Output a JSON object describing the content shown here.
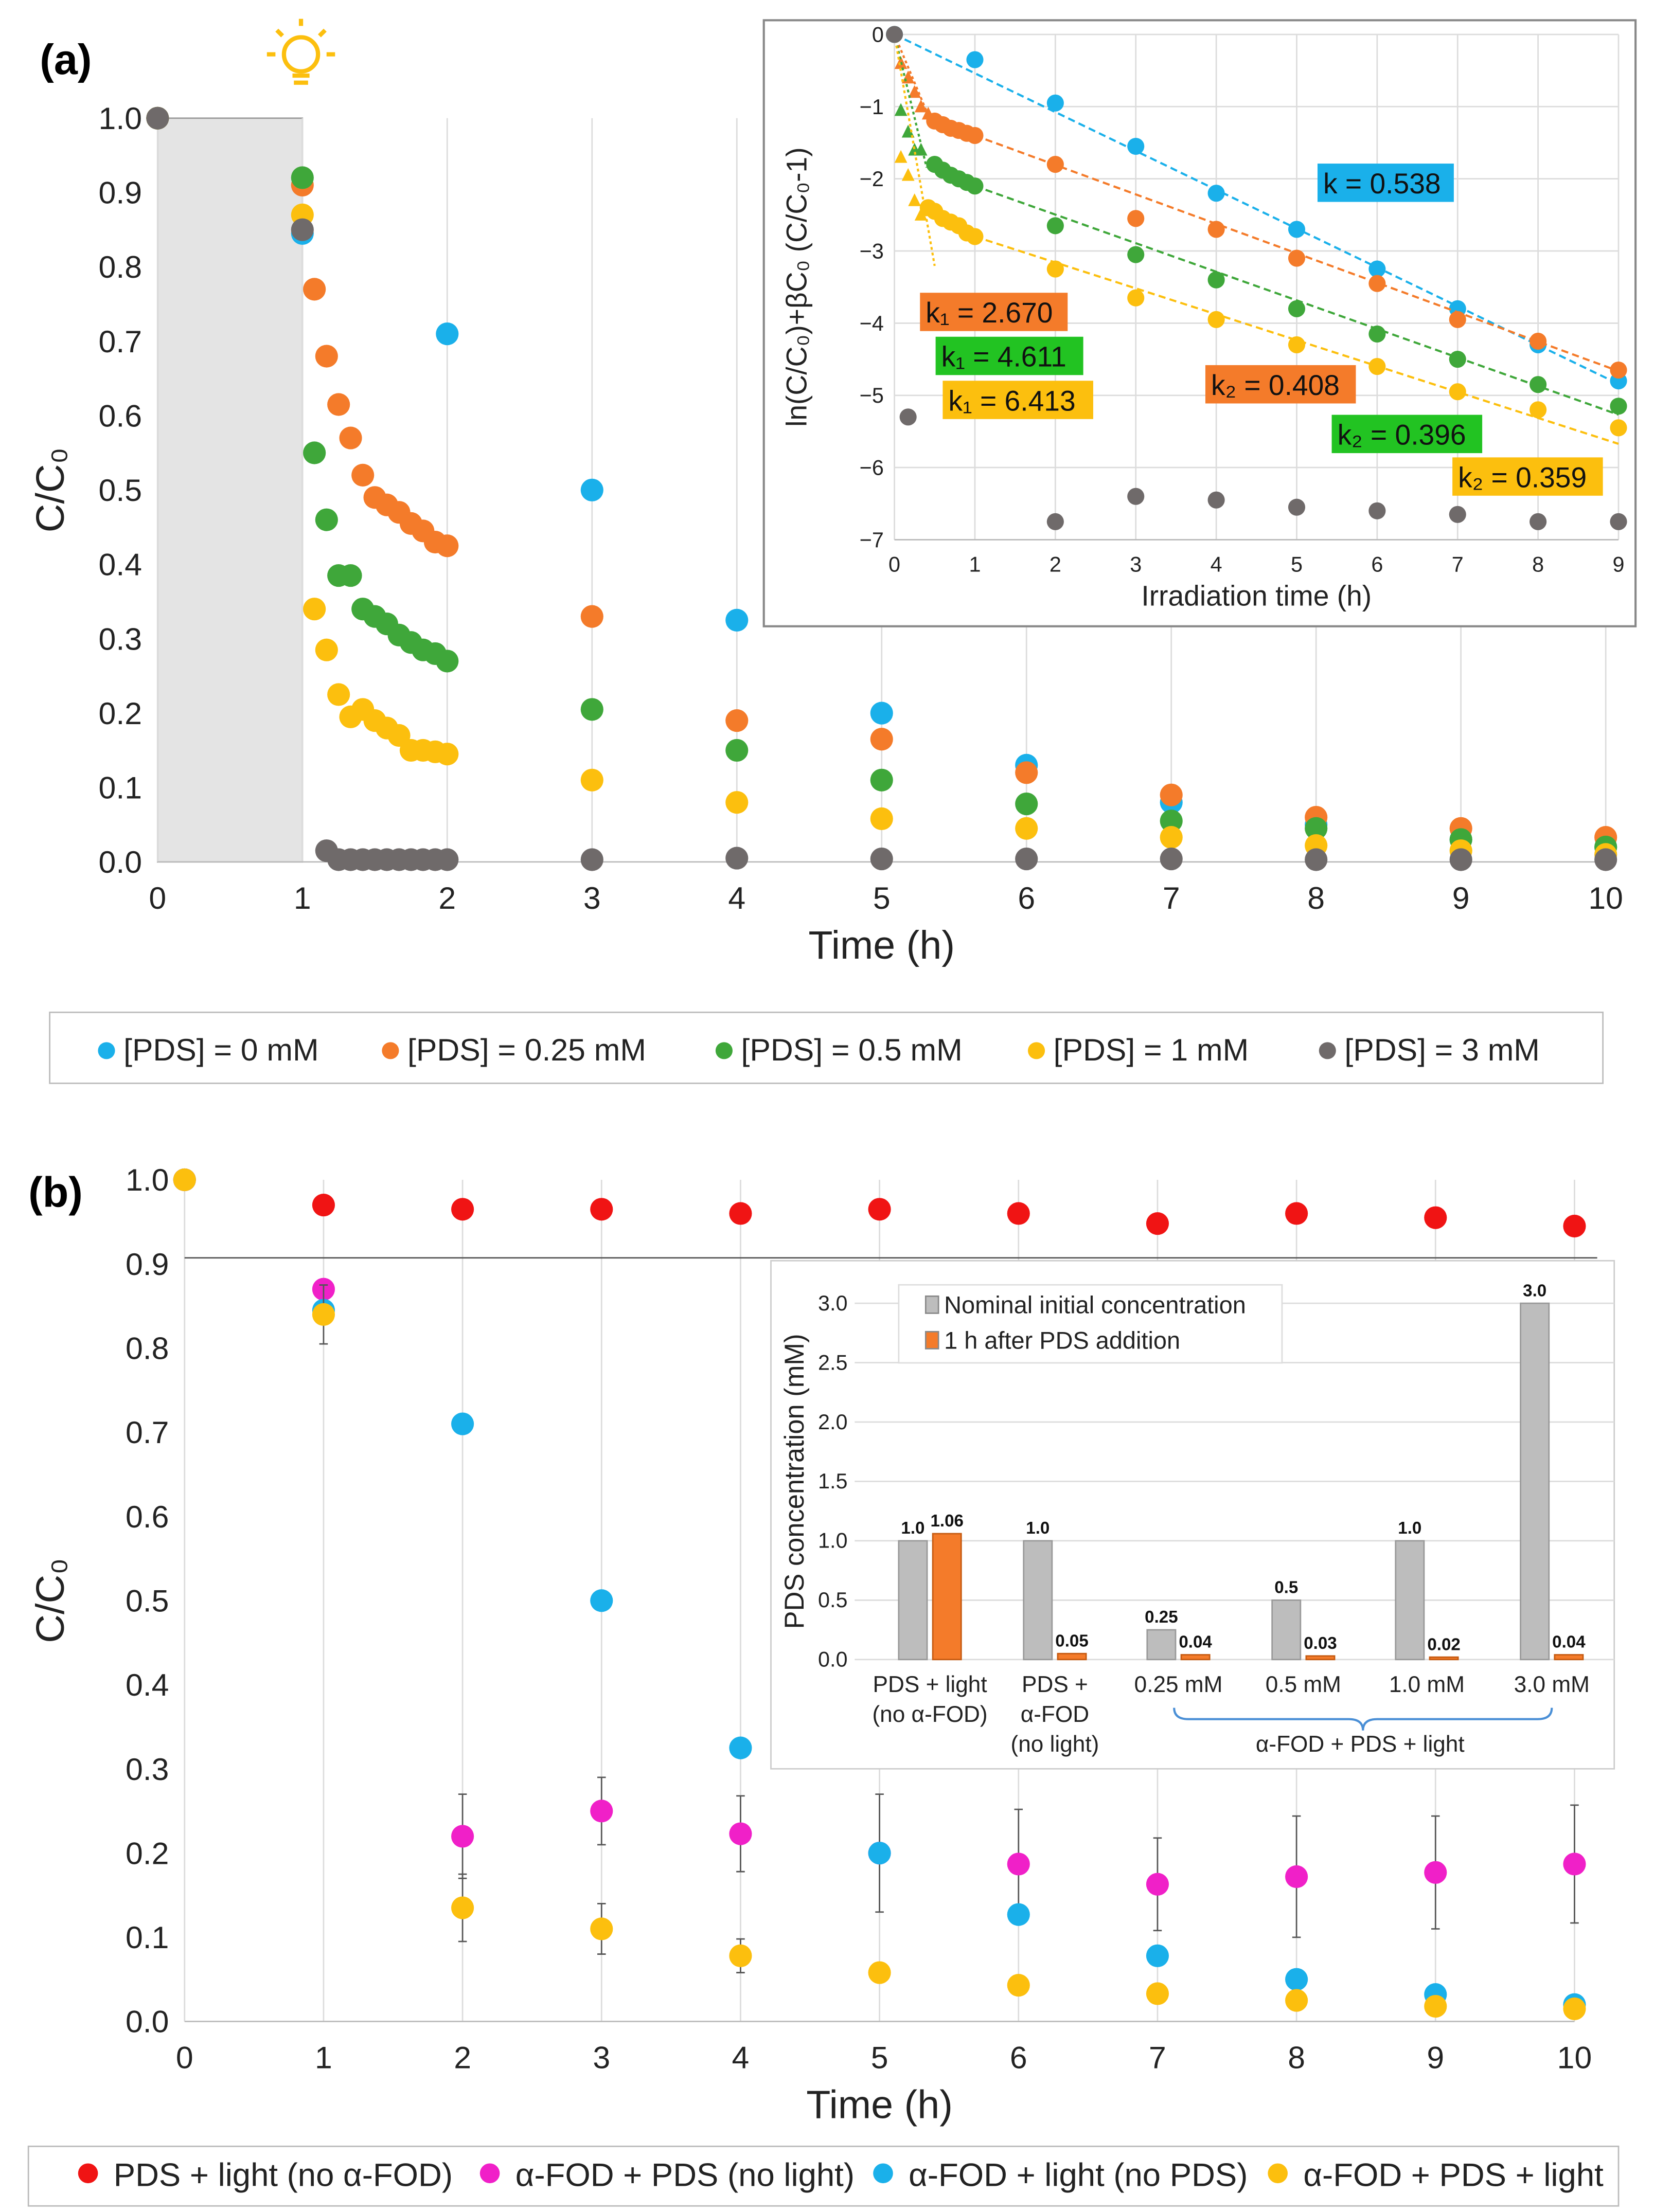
{
  "panel_a_label": "(a)",
  "panel_b_label": "(b)",
  "chart_data": [
    {
      "id": "a_main",
      "type": "scatter",
      "xlabel": "Time (h)",
      "ylabel": "C/C₀",
      "xlim": [
        0,
        10
      ],
      "ylim": [
        0,
        1.0
      ],
      "xticks": [
        "0",
        "1",
        "2",
        "3",
        "4",
        "5",
        "6",
        "7",
        "8",
        "9",
        "10"
      ],
      "yticks": [
        "0.0",
        "0.1",
        "0.2",
        "0.3",
        "0.4",
        "0.5",
        "0.6",
        "0.7",
        "0.8",
        "0.9",
        "1.0"
      ],
      "dark_period": [
        0,
        1
      ],
      "legend_position": "bottom",
      "series": [
        {
          "name": "[PDS] = 0 mM",
          "color": "#1ab0ea",
          "x": [
            0,
            1,
            2,
            3,
            4,
            5,
            6,
            7,
            8,
            9,
            10
          ],
          "y": [
            1,
            0.845,
            0.71,
            0.5,
            0.325,
            0.2,
            0.13,
            0.08,
            0.05,
            0.03,
            0.02
          ]
        },
        {
          "name": "[PDS] = 0.25 mM",
          "color": "#f47b2a",
          "x": [
            0,
            1,
            1.083,
            1.167,
            1.25,
            1.333,
            1.417,
            1.5,
            1.583,
            1.667,
            1.75,
            1.833,
            1.917,
            2,
            3,
            4,
            5,
            6,
            7,
            8,
            9,
            10
          ],
          "y": [
            1,
            0.91,
            0.77,
            0.68,
            0.615,
            0.57,
            0.52,
            0.49,
            0.48,
            0.47,
            0.455,
            0.445,
            0.43,
            0.425,
            0.33,
            0.19,
            0.165,
            0.12,
            0.09,
            0.06,
            0.045,
            0.033
          ]
        },
        {
          "name": "[PDS] = 0.5 mM",
          "color": "#3fa73a",
          "x": [
            0,
            1,
            1.083,
            1.167,
            1.25,
            1.333,
            1.417,
            1.5,
            1.583,
            1.667,
            1.75,
            1.833,
            1.917,
            2,
            3,
            4,
            5,
            6,
            7,
            8,
            9,
            10
          ],
          "y": [
            1,
            0.92,
            0.55,
            0.46,
            0.385,
            0.385,
            0.34,
            0.33,
            0.32,
            0.305,
            0.295,
            0.285,
            0.28,
            0.27,
            0.205,
            0.15,
            0.11,
            0.078,
            0.055,
            0.045,
            0.03,
            0.02
          ]
        },
        {
          "name": "[PDS] = 1 mM",
          "color": "#fcbf0e",
          "x": [
            0,
            1,
            1.083,
            1.167,
            1.25,
            1.333,
            1.417,
            1.5,
            1.583,
            1.667,
            1.75,
            1.833,
            1.917,
            2,
            3,
            4,
            5,
            6,
            7,
            8,
            9,
            10
          ],
          "y": [
            1,
            0.87,
            0.34,
            0.285,
            0.225,
            0.195,
            0.205,
            0.19,
            0.18,
            0.17,
            0.15,
            0.15,
            0.148,
            0.145,
            0.11,
            0.08,
            0.058,
            0.045,
            0.033,
            0.022,
            0.015,
            0.01
          ]
        },
        {
          "name": "[PDS] = 3 mM",
          "color": "#6f6a6a",
          "x": [
            0,
            1,
            1.167,
            1.25,
            1.333,
            1.417,
            1.5,
            1.583,
            1.667,
            1.75,
            1.833,
            1.917,
            2,
            3,
            4,
            5,
            6,
            7,
            8,
            9,
            10
          ],
          "y": [
            1,
            0.85,
            0.015,
            0.003,
            0.003,
            0.003,
            0.003,
            0.003,
            0.003,
            0.003,
            0.003,
            0.003,
            0.003,
            0.003,
            0.005,
            0.004,
            0.004,
            0.004,
            0.003,
            0.003,
            0.003
          ]
        }
      ]
    },
    {
      "id": "a_inset",
      "type": "scatter",
      "xlabel": "Irradiation time (h)",
      "ylabel": "ln(C/C₀)+βC₀ (C/C₀-1)",
      "xlim": [
        0,
        9
      ],
      "ylim": [
        -7,
        0
      ],
      "xticks": [
        "0",
        "1",
        "2",
        "3",
        "4",
        "5",
        "6",
        "7",
        "8",
        "9"
      ],
      "yticks": [
        "0",
        "−1",
        "−2",
        "−3",
        "−4",
        "−5",
        "−6",
        "−7"
      ],
      "series": [
        {
          "name": "0 mM",
          "color": "#1ab0ea",
          "x": [
            0,
            1,
            2,
            3,
            4,
            5,
            6,
            7,
            8,
            9
          ],
          "y": [
            0,
            -0.35,
            -0.95,
            -1.55,
            -2.2,
            -2.7,
            -3.25,
            -3.8,
            -4.3,
            -4.8
          ],
          "fit": {
            "k": 0.538,
            "from": [
              0,
              0
            ],
            "to": 9,
            "label": "k = 0.538"
          }
        },
        {
          "name": "0.25 mM",
          "color": "#f47b2a",
          "triangles": {
            "x": [
              0.08,
              0.17,
              0.25,
              0.33,
              0.42
            ],
            "y": [
              -0.4,
              -0.6,
              -0.8,
              -1.0,
              -1.1
            ]
          },
          "x": [
            0.5,
            0.6,
            0.7,
            0.8,
            0.9,
            1,
            2,
            3,
            4,
            5,
            6,
            7,
            8,
            9
          ],
          "y": [
            -1.2,
            -1.25,
            -1.3,
            -1.33,
            -1.37,
            -1.4,
            -1.8,
            -2.55,
            -2.7,
            -3.1,
            -3.45,
            -3.95,
            -4.25,
            -4.65
          ],
          "fit1": {
            "k": 2.67,
            "to": 0.45,
            "label": "k₁ = 2.670"
          },
          "fit": {
            "k": 0.408,
            "from": [
              1,
              -1.4
            ],
            "to": 9,
            "label": "k₂ = 0.408"
          }
        },
        {
          "name": "0.5 mM",
          "color": "#3fa73a",
          "triangles": {
            "x": [
              0.08,
              0.17,
              0.25,
              0.33
            ],
            "y": [
              -1.05,
              -1.35,
              -1.6,
              -1.6
            ]
          },
          "x": [
            0.5,
            0.6,
            0.7,
            0.8,
            0.9,
            1,
            2,
            3,
            4,
            5,
            6,
            7,
            8,
            9
          ],
          "y": [
            -1.8,
            -1.88,
            -1.95,
            -2.0,
            -2.05,
            -2.1,
            -2.65,
            -3.05,
            -3.4,
            -3.8,
            -4.15,
            -4.5,
            -4.85,
            -5.15
          ],
          "fit1": {
            "k": 4.611,
            "to": 0.4,
            "label": "k₁ = 4.611"
          },
          "fit": {
            "k": 0.396,
            "from": [
              1,
              -2.1
            ],
            "to": 9,
            "label": "k₂ = 0.396"
          }
        },
        {
          "name": "1 mM",
          "color": "#fcbf0e",
          "triangles": {
            "x": [
              0.08,
              0.17,
              0.25,
              0.33
            ],
            "y": [
              -1.7,
              -1.95,
              -2.3,
              -2.5
            ]
          },
          "x": [
            0.42,
            0.5,
            0.6,
            0.7,
            0.8,
            0.9,
            1,
            2,
            3,
            4,
            5,
            6,
            7,
            8,
            9
          ],
          "y": [
            -2.4,
            -2.45,
            -2.55,
            -2.6,
            -2.65,
            -2.75,
            -2.8,
            -3.25,
            -3.65,
            -3.95,
            -4.3,
            -4.6,
            -4.95,
            -5.2,
            -5.45
          ],
          "fit1": {
            "k": 6.413,
            "to": 0.5,
            "label": "k₁ = 6.413"
          },
          "fit": {
            "k": 0.359,
            "from": [
              1,
              -2.8
            ],
            "to": 9,
            "label": "k₂ = 0.359"
          }
        },
        {
          "name": "3 mM",
          "color": "#6f6a6a",
          "x": [
            0,
            0.17,
            2,
            3,
            4,
            5,
            6,
            7,
            8,
            9
          ],
          "y": [
            0,
            -5.3,
            -6.75,
            -6.4,
            -6.45,
            -6.55,
            -6.6,
            -6.65,
            -6.75,
            -6.75
          ]
        }
      ]
    },
    {
      "id": "b_main",
      "type": "scatter",
      "xlabel": "Time (h)",
      "ylabel": "C/C₀",
      "xlim": [
        0,
        10
      ],
      "ylim": [
        0,
        1.0
      ],
      "xticks": [
        "0",
        "1",
        "2",
        "3",
        "4",
        "5",
        "6",
        "7",
        "8",
        "9",
        "10"
      ],
      "yticks": [
        "0.0",
        "0.1",
        "0.2",
        "0.3",
        "0.4",
        "0.5",
        "0.6",
        "0.7",
        "0.8",
        "0.9",
        "1.0"
      ],
      "legend_position": "bottom",
      "series": [
        {
          "name": "PDS + light (no α-FOD)",
          "color": "#f01414",
          "x": [
            0,
            1,
            2,
            3,
            4,
            5,
            6,
            7,
            8,
            9,
            10
          ],
          "y": [
            1,
            0.97,
            0.965,
            0.965,
            0.96,
            0.965,
            0.96,
            0.948,
            0.96,
            0.955,
            0.945
          ]
        },
        {
          "name": "α-FOD + PDS (no light)",
          "color": "#f020c8",
          "x": [
            0,
            1,
            2,
            3,
            4,
            5,
            6,
            7,
            8,
            9,
            10
          ],
          "y": [
            1,
            0.87,
            0.22,
            0.25,
            0.223,
            0.2,
            0.187,
            0.163,
            0.172,
            0.177,
            0.187
          ],
          "err": [
            0,
            0,
            0.05,
            0.04,
            0.045,
            0.07,
            0.065,
            0.055,
            0.072,
            0.067,
            0.07
          ]
        },
        {
          "name": "α-FOD + light (no PDS)",
          "color": "#1ab0ea",
          "x": [
            0,
            1,
            2,
            3,
            4,
            5,
            6,
            7,
            8,
            9,
            10
          ],
          "y": [
            1,
            0.845,
            0.71,
            0.5,
            0.325,
            0.2,
            0.127,
            0.078,
            0.05,
            0.032,
            0.02
          ]
        },
        {
          "name": "α-FOD + PDS + light",
          "color": "#fcbf0e",
          "x": [
            0,
            1,
            2,
            3,
            4,
            5,
            6,
            7,
            8,
            9,
            10
          ],
          "y": [
            1,
            0.84,
            0.135,
            0.11,
            0.078,
            0.058,
            0.043,
            0.033,
            0.025,
            0.018,
            0.015
          ],
          "err": [
            0,
            0.035,
            0.04,
            0.03,
            0.02,
            0.01,
            0,
            0,
            0,
            0,
            0
          ]
        }
      ]
    },
    {
      "id": "b_inset",
      "type": "bar",
      "ylabel": "PDS concentration (mM)",
      "ylim": [
        0,
        3.0
      ],
      "yticks": [
        "0.0",
        "0.5",
        "1.0",
        "1.5",
        "2.0",
        "2.5",
        "3.0"
      ],
      "categories": [
        [
          "PDS + light",
          "(no α-FOD)"
        ],
        [
          "PDS +",
          "α-FOD",
          "(no light)"
        ],
        [
          "0.25 mM"
        ],
        [
          "0.5 mM"
        ],
        [
          "1.0 mM"
        ],
        [
          "3.0 mM"
        ]
      ],
      "group_label": "α-FOD + PDS + light",
      "legend_position": "top-left",
      "series": [
        {
          "name": "Nominal initial concentration",
          "color": "#bdbdbd",
          "values": [
            1.0,
            1.0,
            0.25,
            0.5,
            1.0,
            3.0
          ],
          "labels": [
            "1.0",
            "1.0",
            "0.25",
            "0.5",
            "1.0",
            "3.0"
          ]
        },
        {
          "name": "1 h after PDS addition",
          "color": "#f47b2a",
          "values": [
            1.06,
            0.05,
            0.04,
            0.03,
            0.02,
            0.04
          ],
          "labels": [
            "1.06",
            "0.05",
            "0.04",
            "0.03",
            "0.02",
            "0.04"
          ]
        }
      ]
    }
  ]
}
